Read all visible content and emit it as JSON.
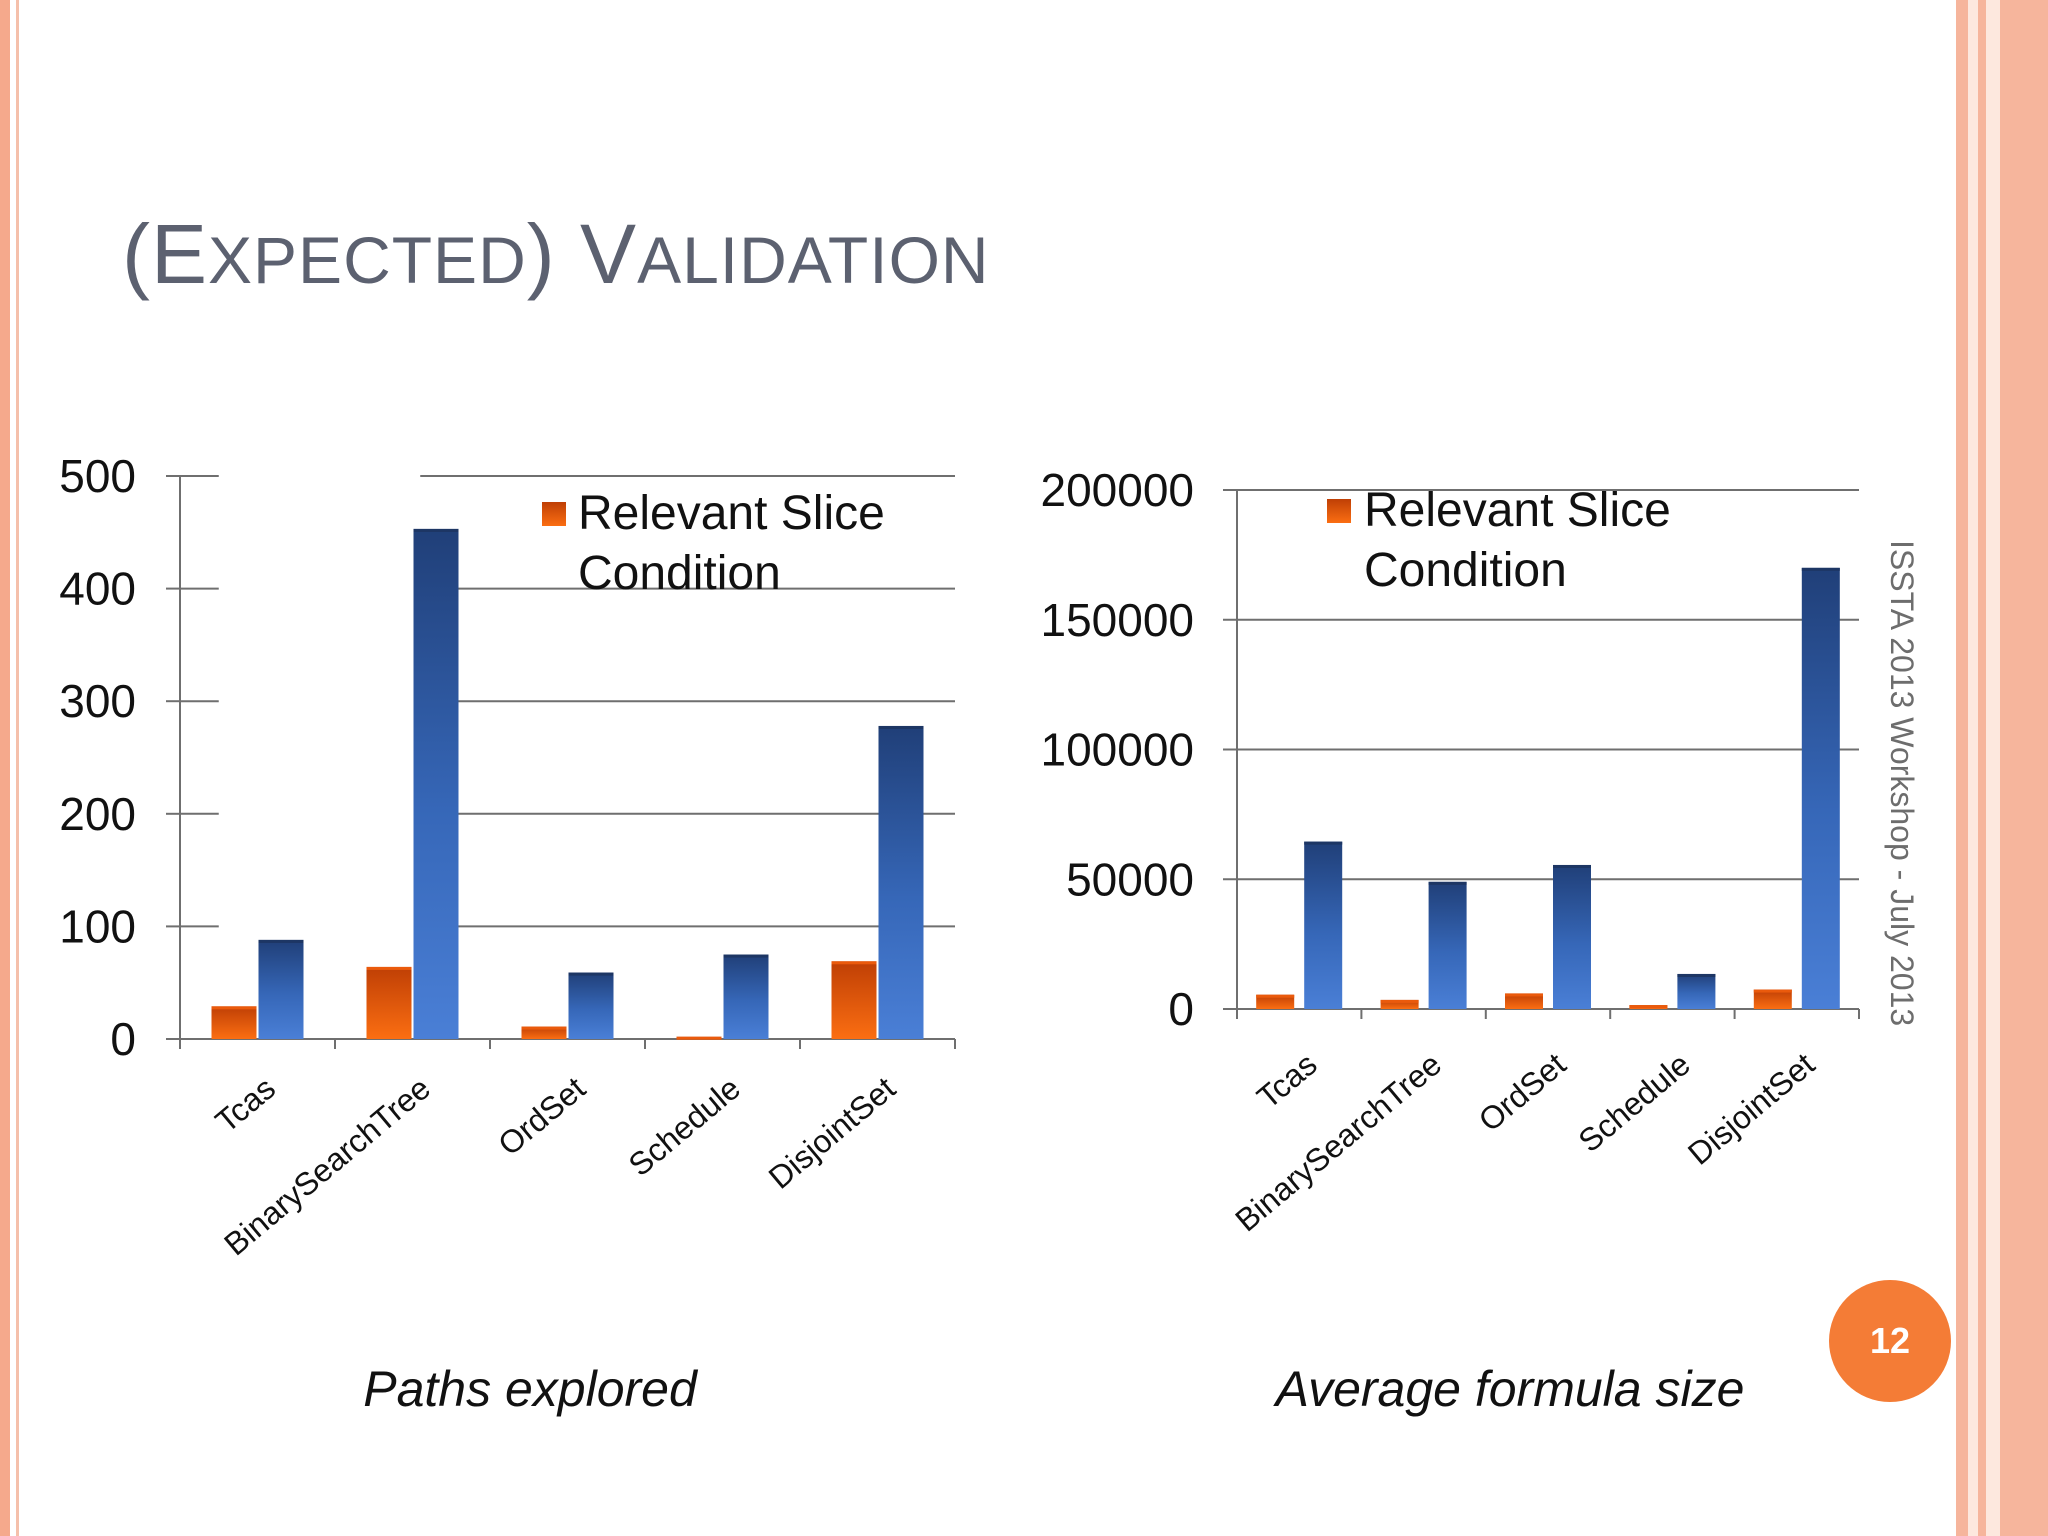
{
  "slide": {
    "title_first_letter": "(E",
    "title_rest_1": "XPECTED",
    "title_mid": ") V",
    "title_rest_2": "ALIDATION",
    "side_note": "ISSTA 2013 Workshop - July 2013",
    "page_number": "12"
  },
  "colors": {
    "series_a": "#ea5a0c",
    "series_b": "#3563b5",
    "frame_accent": "#f5a98c",
    "badge": "#f47c36"
  },
  "chart_data": [
    {
      "type": "bar",
      "caption": "Paths explored",
      "categories": [
        "Tcas",
        "BinarySearchTree",
        "OrdSet",
        "Schedule",
        "DisjointSet"
      ],
      "series": [
        {
          "name": "Relevant Slice",
          "values": [
            29,
            64,
            11,
            2,
            69
          ]
        },
        {
          "values": [
            88,
            453,
            59,
            75,
            278
          ]
        }
      ],
      "legend_lines": [
        "Relevant Slice",
        "Condition"
      ],
      "ylim": [
        0,
        500
      ],
      "yticks": [
        "0",
        "100",
        "200",
        "300",
        "400",
        "500"
      ],
      "grid": true,
      "legend_position": "top-right"
    },
    {
      "type": "bar",
      "caption": "Average formula size",
      "categories": [
        "Tcas",
        "BinarySearchTree",
        "OrdSet",
        "Schedule",
        "DisjointSet"
      ],
      "series": [
        {
          "name": "Relevant Slice",
          "values": [
            5500,
            3500,
            6000,
            1500,
            7500
          ]
        },
        {
          "values": [
            64500,
            49000,
            55500,
            13500,
            170000
          ]
        }
      ],
      "legend_lines": [
        "Relevant Slice",
        "Condition"
      ],
      "ylim": [
        0,
        200000
      ],
      "yticks": [
        "0",
        "50000",
        "100000",
        "150000",
        "200000"
      ],
      "grid": true,
      "legend_position": "top-left"
    }
  ]
}
